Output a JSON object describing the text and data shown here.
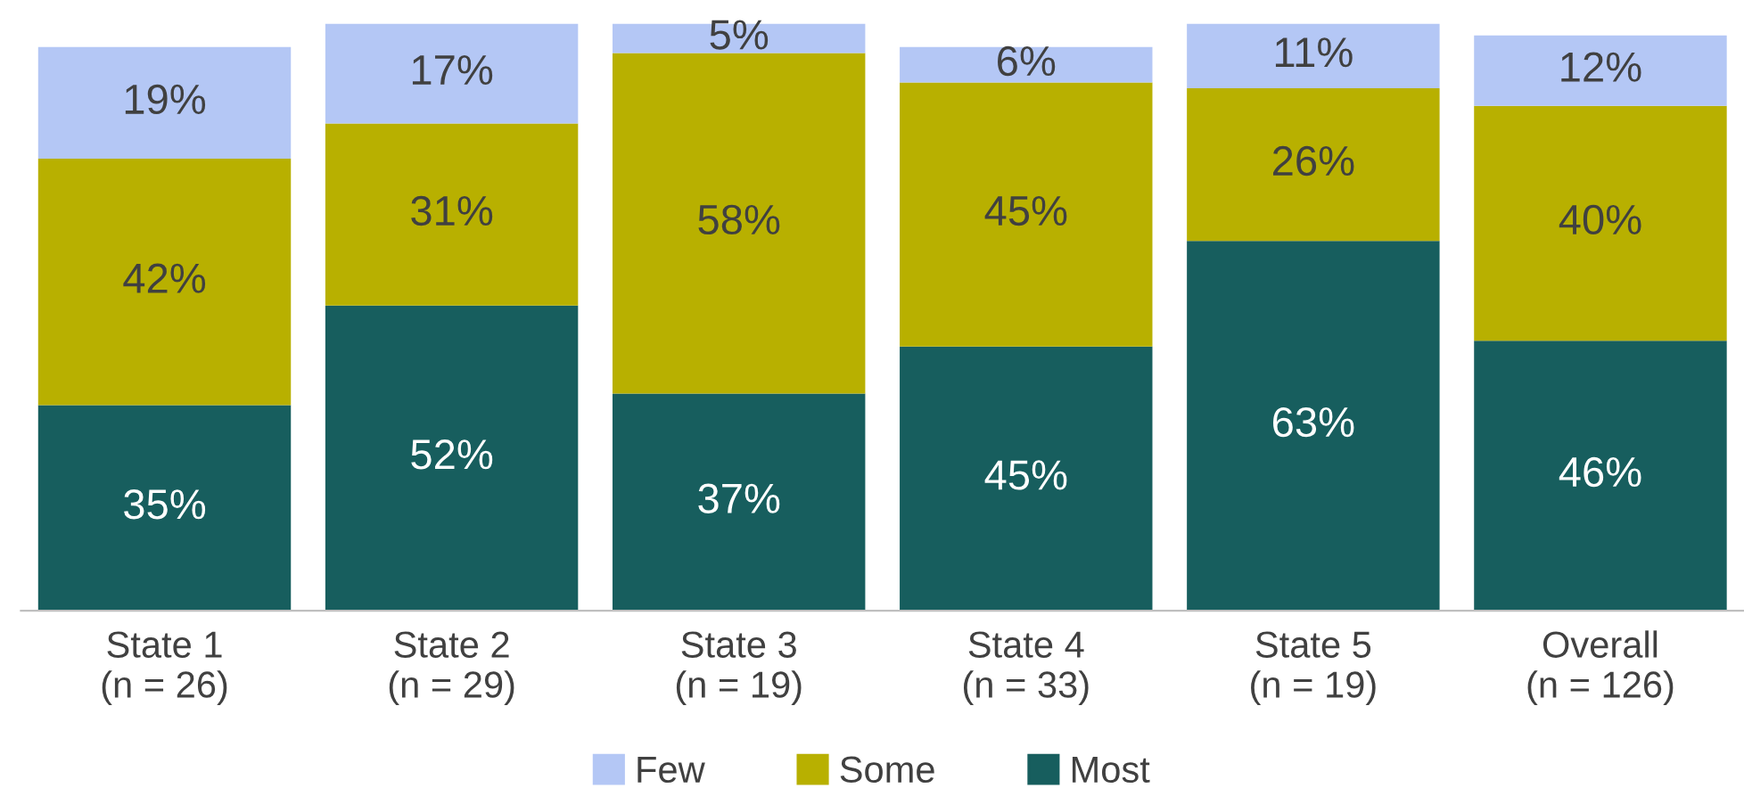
{
  "chart_data": {
    "type": "bar",
    "stacked": true,
    "legend": "bottom",
    "grid": false,
    "categories": [
      "State 1\n(n = 26)",
      "State 2\n(n = 29)",
      "State 3\n(n = 19)",
      "State 4\n(n = 33)",
      "State 5\n(n = 19)",
      "Overall\n(n = 126)"
    ],
    "series": [
      {
        "name": "Most",
        "color": "#175e5e",
        "values": [
          35,
          52,
          37,
          45,
          63,
          46
        ],
        "value_labels": [
          "35%",
          "52%",
          "37%",
          "45%",
          "63%",
          "46%"
        ]
      },
      {
        "name": "Some",
        "color": "#b8b000",
        "values": [
          42,
          31,
          58,
          45,
          26,
          40
        ],
        "value_labels": [
          "42%",
          "31%",
          "58%",
          "45%",
          "26%",
          "40%"
        ]
      },
      {
        "name": "Few",
        "color": "#b4c7f5",
        "values": [
          19,
          17,
          5,
          6,
          11,
          12
        ],
        "value_labels": [
          "19%",
          "17%",
          "5%",
          "6%",
          "11%",
          "12%"
        ]
      }
    ]
  }
}
